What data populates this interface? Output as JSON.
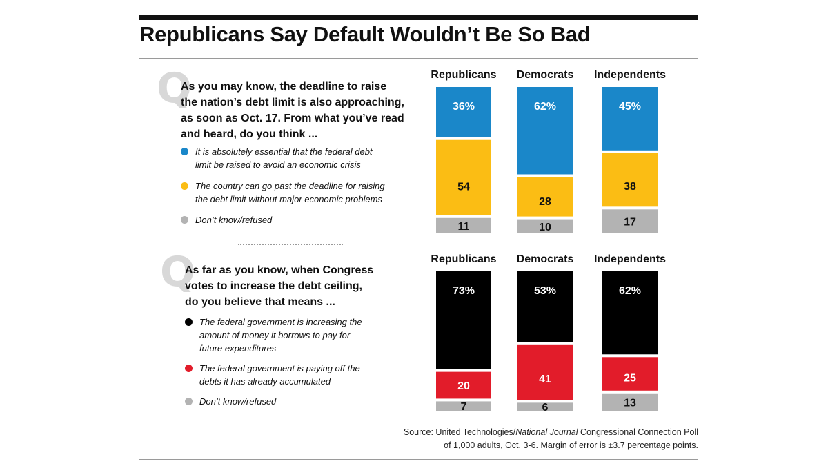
{
  "title": "Republicans Say Default Wouldn’t Be So Bad",
  "q_letter": "Q",
  "questions": [
    {
      "text": "As you may know, the deadline to raise\nthe nation’s debt limit is also approaching,\nas soon as Oct. 17. From what you’ve read\nand heard, do you think ...",
      "legend": [
        {
          "label": "It is absolutely essential that the federal debt\nlimit be raised to avoid an economic crisis",
          "color": "#1a87c9"
        },
        {
          "label": "The country can go past the deadline for raising\nthe debt limit without major economic problems",
          "color": "#fbbd14"
        },
        {
          "label": "Don’t know/refused",
          "color": "#b3b3b3"
        }
      ]
    },
    {
      "text": "As far as you know, when Congress\nvotes to increase the debt ceiling,\ndo you believe that means ...",
      "legend": [
        {
          "label": "The federal government is increasing the\namount of money it borrows to pay for\nfuture expenditures",
          "color": "#000000"
        },
        {
          "label": "The federal government is paying off the\ndebts it has already accumulated",
          "color": "#e21c2a"
        },
        {
          "label": "Don’t know/refused",
          "color": "#b3b3b3"
        }
      ]
    }
  ],
  "source": {
    "prefix": "Source: United Technologies/",
    "italic": "National Journal",
    "suffix": " Congressional Connection Poll",
    "line2": "of 1,000 adults, Oct. 3-6. Margin of error is ±3.7 percentage points."
  },
  "chart_data": [
    {
      "type": "bar",
      "stacked": true,
      "categories": [
        "Republicans",
        "Democrats",
        "Independents"
      ],
      "series": [
        {
          "name": "It is absolutely essential that the federal debt limit be raised to avoid an economic crisis",
          "values": [
            36,
            62,
            45
          ],
          "labels": [
            "36%",
            "62%",
            "45%"
          ],
          "color": "#1a87c9",
          "label_color": "#ffffff"
        },
        {
          "name": "The country can go past the deadline for raising the debt limit without major economic problems",
          "values": [
            54,
            28,
            38
          ],
          "labels": [
            "54",
            "28",
            "38"
          ],
          "color": "#fbbd14",
          "label_color": "#111111"
        },
        {
          "name": "Don’t know/refused",
          "values": [
            11,
            10,
            17
          ],
          "labels": [
            "11",
            "10",
            "17"
          ],
          "color": "#b3b3b3",
          "label_color": "#111111"
        }
      ]
    },
    {
      "type": "bar",
      "stacked": true,
      "categories": [
        "Republicans",
        "Democrats",
        "Independents"
      ],
      "series": [
        {
          "name": "The federal government is increasing the amount of money it borrows to pay for future expenditures",
          "values": [
            73,
            53,
            62
          ],
          "labels": [
            "73%",
            "53%",
            "62%"
          ],
          "color": "#000000",
          "label_color": "#ffffff"
        },
        {
          "name": "The federal government is paying off the debts it has already accumulated",
          "values": [
            20,
            41,
            25
          ],
          "labels": [
            "20",
            "41",
            "25"
          ],
          "color": "#e21c2a",
          "label_color": "#ffffff"
        },
        {
          "name": "Don’t know/refused",
          "values": [
            7,
            6,
            13
          ],
          "labels": [
            "7",
            "6",
            "13"
          ],
          "color": "#b3b3b3",
          "label_color": "#111111"
        }
      ]
    }
  ]
}
